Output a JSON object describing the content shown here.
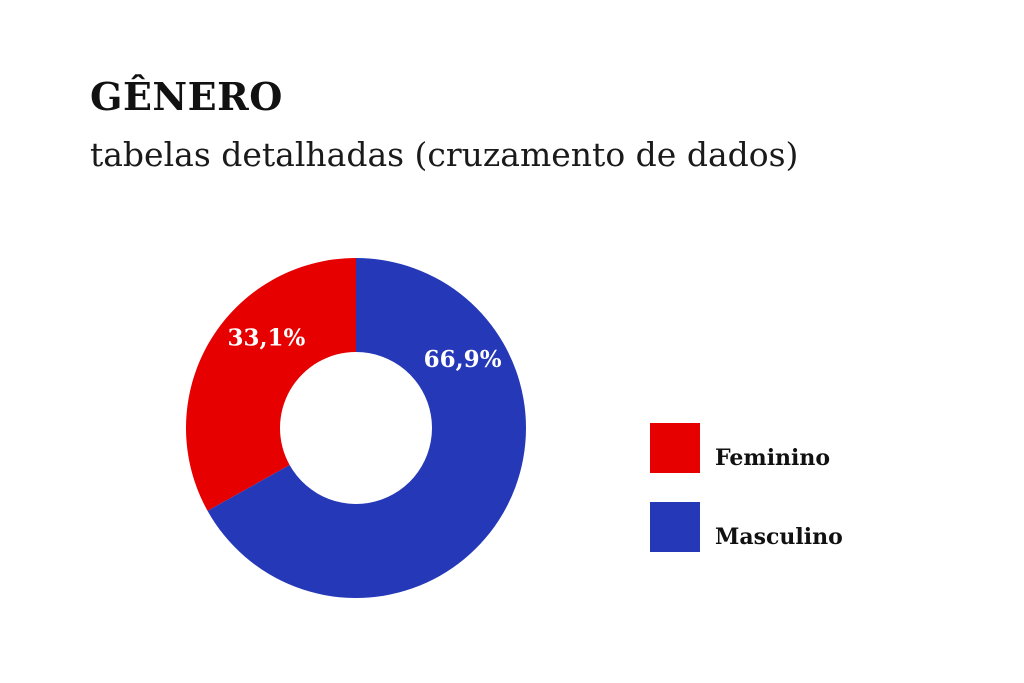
{
  "chart_data": {
    "type": "pie",
    "variant": "donut",
    "title": "GÊNERO",
    "subtitle": "tabelas detalhadas (cruzamento de dados)",
    "slices": [
      {
        "label": "Feminino",
        "value": 33.1,
        "display": "33,1%",
        "color": "#e60000"
      },
      {
        "label": "Masculino",
        "value": 66.9,
        "display": "66,9%",
        "color": "#2438b8"
      }
    ],
    "legend_position": "right"
  }
}
